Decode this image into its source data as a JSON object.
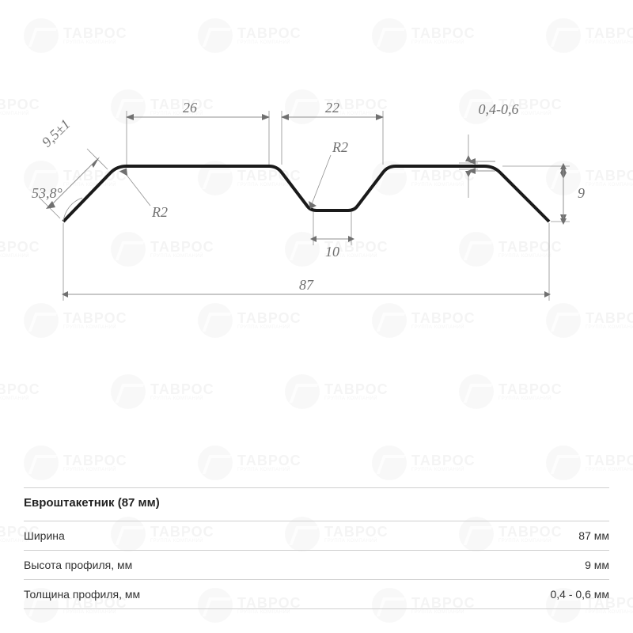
{
  "watermark": {
    "main": "ТАВРОС",
    "sub": "ГРУППА КОМПАНИЙ",
    "positions": [
      [
        30,
        20
      ],
      [
        250,
        20
      ],
      [
        470,
        20
      ],
      [
        690,
        20
      ],
      [
        -80,
        110
      ],
      [
        140,
        110
      ],
      [
        360,
        110
      ],
      [
        580,
        110
      ],
      [
        30,
        200
      ],
      [
        250,
        200
      ],
      [
        470,
        200
      ],
      [
        690,
        200
      ],
      [
        -80,
        290
      ],
      [
        140,
        290
      ],
      [
        360,
        290
      ],
      [
        580,
        290
      ],
      [
        30,
        380
      ],
      [
        250,
        380
      ],
      [
        470,
        380
      ],
      [
        690,
        380
      ],
      [
        -80,
        470
      ],
      [
        140,
        470
      ],
      [
        360,
        470
      ],
      [
        580,
        470
      ],
      [
        30,
        560
      ],
      [
        250,
        560
      ],
      [
        470,
        560
      ],
      [
        690,
        560
      ],
      [
        -80,
        650
      ],
      [
        140,
        650
      ],
      [
        360,
        650
      ],
      [
        580,
        650
      ],
      [
        30,
        740
      ],
      [
        250,
        740
      ],
      [
        470,
        740
      ],
      [
        690,
        740
      ]
    ]
  },
  "diagram": {
    "profile_color": "#1a1a1a",
    "dim_color": "#707070",
    "dim_fontsize": 18,
    "dim_font": "Times New Roman, serif",
    "profile_stroke_width": 4,
    "dimensions": {
      "overall_width": "87",
      "left_flat": "26",
      "groove_top": "22",
      "groove_bottom": "10",
      "height": "9",
      "thickness": "0,4-0,6",
      "edge_offset": "9,5±1",
      "edge_angle": "53,8°",
      "radius_note": "R2"
    }
  },
  "spec": {
    "title": "Евроштакетник (87 мм)",
    "rows": [
      {
        "label": "Ширина",
        "value": "87 мм"
      },
      {
        "label": "Высота профиля, мм",
        "value": "9 мм"
      },
      {
        "label": "Толщина профиля, мм",
        "value": "0,4 - 0,6 мм"
      }
    ]
  }
}
